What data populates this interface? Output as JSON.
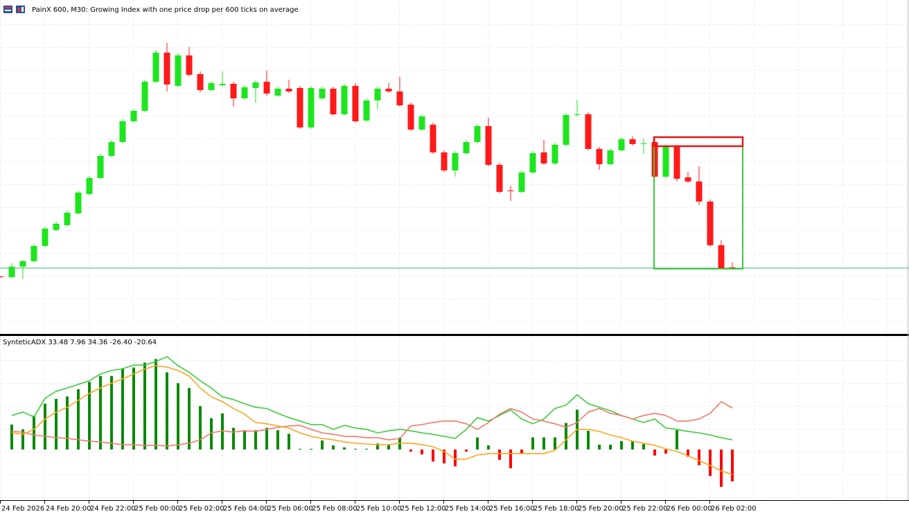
{
  "chart_data": [
    {
      "type": "candlestick",
      "title": "PainX 600, M30:  Growing Index with one price drop per 600 ticks on average",
      "categories": [
        "24 Feb 2026",
        null,
        null,
        null,
        "24 Feb 20:00",
        null,
        null,
        null,
        "24 Feb 22:00",
        null,
        null,
        null,
        "25 Feb 00:00",
        null,
        null,
        null,
        "25 Feb 02:00",
        null,
        null,
        null,
        "25 Feb 04:00",
        null,
        null,
        null,
        "25 Feb 06:00",
        null,
        null,
        null,
        "25 Feb 08:00",
        null,
        null,
        null,
        "25 Feb 10:00",
        null,
        null,
        null,
        "25 Feb 12:00",
        null,
        null,
        null,
        "25 Feb 14:00",
        null,
        null,
        null,
        "25 Feb 16:00",
        null,
        null,
        null,
        "25 Feb 18:00",
        null,
        null,
        null,
        "25 Feb 20:00",
        null,
        null,
        null,
        "25 Feb 22:00",
        null,
        null,
        null,
        "26 Feb 00:00",
        null,
        null,
        null,
        "26 Feb 02:00",
        null,
        null
      ],
      "open": [
        81,
        80,
        95,
        103,
        125,
        148,
        155,
        172,
        200,
        223,
        255,
        275,
        305,
        320,
        362,
        404,
        356,
        400,
        373,
        350,
        357,
        359,
        338,
        353,
        362,
        342,
        352,
        353,
        296,
        338,
        352,
        315,
        356,
        306,
        335,
        352,
        348,
        329,
        293,
        300,
        260,
        234,
        259,
        275,
        298,
        242,
        205,
        203,
        231,
        260,
        244,
        271,
        314,
        315,
        265,
        243,
        263,
        279,
        272,
        275,
        225,
        268,
        224,
        218,
        189,
        126,
        94
      ],
      "high": [
        81,
        100,
        105,
        128,
        153,
        160,
        176,
        205,
        226,
        258,
        278,
        308,
        323,
        365,
        408,
        418,
        403,
        412,
        377,
        363,
        377,
        362,
        357,
        364,
        378,
        355,
        365,
        356,
        356,
        355,
        355,
        359,
        360,
        338,
        355,
        360,
        369,
        332,
        315,
        303,
        263,
        262,
        278,
        301,
        310,
        245,
        212,
        234,
        262,
        278,
        274,
        317,
        336,
        318,
        268,
        266,
        282,
        283,
        280,
        282,
        271,
        271,
        232,
        240,
        192,
        133,
        101
      ],
      "low": [
        79,
        78,
        77,
        101,
        123,
        146,
        153,
        170,
        198,
        221,
        253,
        273,
        303,
        318,
        360,
        348,
        354,
        370,
        347,
        348,
        355,
        326,
        336,
        332,
        342,
        340,
        346,
        294,
        294,
        336,
        313,
        313,
        303,
        304,
        322,
        346,
        326,
        291,
        291,
        258,
        232,
        225,
        257,
        273,
        240,
        201,
        190,
        201,
        229,
        242,
        242,
        269,
        312,
        263,
        235,
        241,
        261,
        270,
        258,
        223,
        223,
        218,
        216,
        184,
        124,
        91,
        91
      ],
      "close": [
        80,
        95,
        103,
        125,
        150,
        157,
        173,
        202,
        223,
        255,
        275,
        305,
        320,
        362,
        404,
        358,
        400,
        372,
        350,
        360,
        359,
        338,
        354,
        361,
        345,
        352,
        348,
        296,
        353,
        352,
        315,
        356,
        305,
        335,
        352,
        348,
        328,
        293,
        312,
        260,
        234,
        259,
        275,
        298,
        242,
        203,
        204,
        231,
        259,
        244,
        271,
        314,
        315,
        265,
        243,
        263,
        279,
        272,
        273,
        225,
        268,
        222,
        218,
        189,
        126,
        93,
        92
      ],
      "up_color": "#1ee61e",
      "down_color": "#ff1a1a",
      "level": 93,
      "level_color": "#3cb371",
      "ylim": [
        -2,
        480
      ],
      "grid": true
    },
    {
      "type": "indicator",
      "title": "SynteticADX 33.48 7.96 34.36 -26.40 -20.64",
      "ylim": [
        -42,
        93
      ],
      "histogram": {
        "color": "#0a8a0a",
        "negative_color": "#ff0000",
        "values": [
          null,
          20.7,
          16.7,
          28,
          38,
          42,
          44,
          50,
          56,
          61,
          61,
          67,
          68,
          72,
          75,
          64,
          55,
          51,
          36,
          26,
          30,
          18,
          16,
          16,
          18,
          16,
          13,
          0.6,
          0.6,
          7.5,
          3.4,
          1.7,
          0.6,
          0.6,
          5,
          4,
          10,
          -1.7,
          -4,
          -10,
          -11.5,
          -14,
          -1.7,
          10,
          3.4,
          -8.6,
          -15.5,
          -3.4,
          10,
          10,
          10,
          22,
          33,
          15.5,
          4,
          4,
          7,
          7,
          4.6,
          -5,
          -3.4,
          16,
          -6,
          -13,
          -22,
          -31,
          -26.4
        ]
      },
      "series": [
        {
          "color": "#3ccc3c",
          "values": [
            null,
            28.2,
            31,
            27,
            42.5,
            48.3,
            51,
            54,
            57,
            62.6,
            65.5,
            67,
            70,
            70,
            73,
            77,
            69.5,
            64,
            57,
            51,
            43.7,
            41.4,
            38,
            35,
            34,
            30,
            26.4,
            23.6,
            20.7,
            20.7,
            16.7,
            20,
            17.8,
            16.7,
            13.8,
            15.5,
            16.7,
            15.5,
            13.8,
            12.6,
            10.9,
            9.2,
            16.7,
            26.4,
            23.6,
            28.2,
            32.8,
            25.3,
            21.3,
            25.3,
            34,
            36.8,
            45.4,
            38,
            35,
            32.2,
            28.2,
            25.3,
            22.4,
            25.3,
            17.8,
            16.7,
            15,
            13.8,
            12,
            9.8,
            7.96
          ]
        },
        {
          "color": "#f07a6a",
          "values": [
            null,
            15,
            14.4,
            12,
            11,
            9.8,
            9.2,
            8,
            6.9,
            6.3,
            5.2,
            4,
            4,
            3.4,
            3.4,
            2.9,
            4,
            5.2,
            8,
            13.8,
            15.5,
            14.4,
            15.5,
            15,
            16.7,
            18.4,
            19.5,
            20,
            16.7,
            13.8,
            12.6,
            10.9,
            10.9,
            9.8,
            9.8,
            8,
            9.2,
            19.5,
            20.7,
            22.4,
            23.6,
            23.6,
            21.3,
            16.7,
            22.4,
            29.3,
            34,
            31,
            25.3,
            23.6,
            21.3,
            18.4,
            22.4,
            31,
            34,
            30,
            28.2,
            25.3,
            28.2,
            30,
            28.2,
            23.6,
            23.6,
            25.3,
            30,
            39.7,
            34.36
          ]
        },
        {
          "color": "#ffa520",
          "values": [
            null,
            13.8,
            12.6,
            16.7,
            25.3,
            31,
            35,
            40.8,
            46.6,
            51,
            55,
            58.6,
            62.6,
            66.7,
            69.5,
            68.4,
            65.5,
            60.9,
            51,
            43.7,
            39.7,
            34,
            29.3,
            22.4,
            21.3,
            19.5,
            17.8,
            13.8,
            10.9,
            9.2,
            8,
            6.3,
            5.2,
            4.6,
            4,
            4,
            5.2,
            5.2,
            4,
            2.3,
            -1.7,
            -8,
            -8,
            -4.6,
            -3.4,
            -3.4,
            -3.4,
            -3.4,
            -3.4,
            -3.4,
            -0.6,
            8,
            16.7,
            16.7,
            15,
            12,
            9.8,
            6.9,
            5.2,
            3.4,
            0.6,
            -1.7,
            -5.2,
            -9.2,
            -13.2,
            -17.8,
            -20.64
          ]
        }
      ]
    }
  ]
}
